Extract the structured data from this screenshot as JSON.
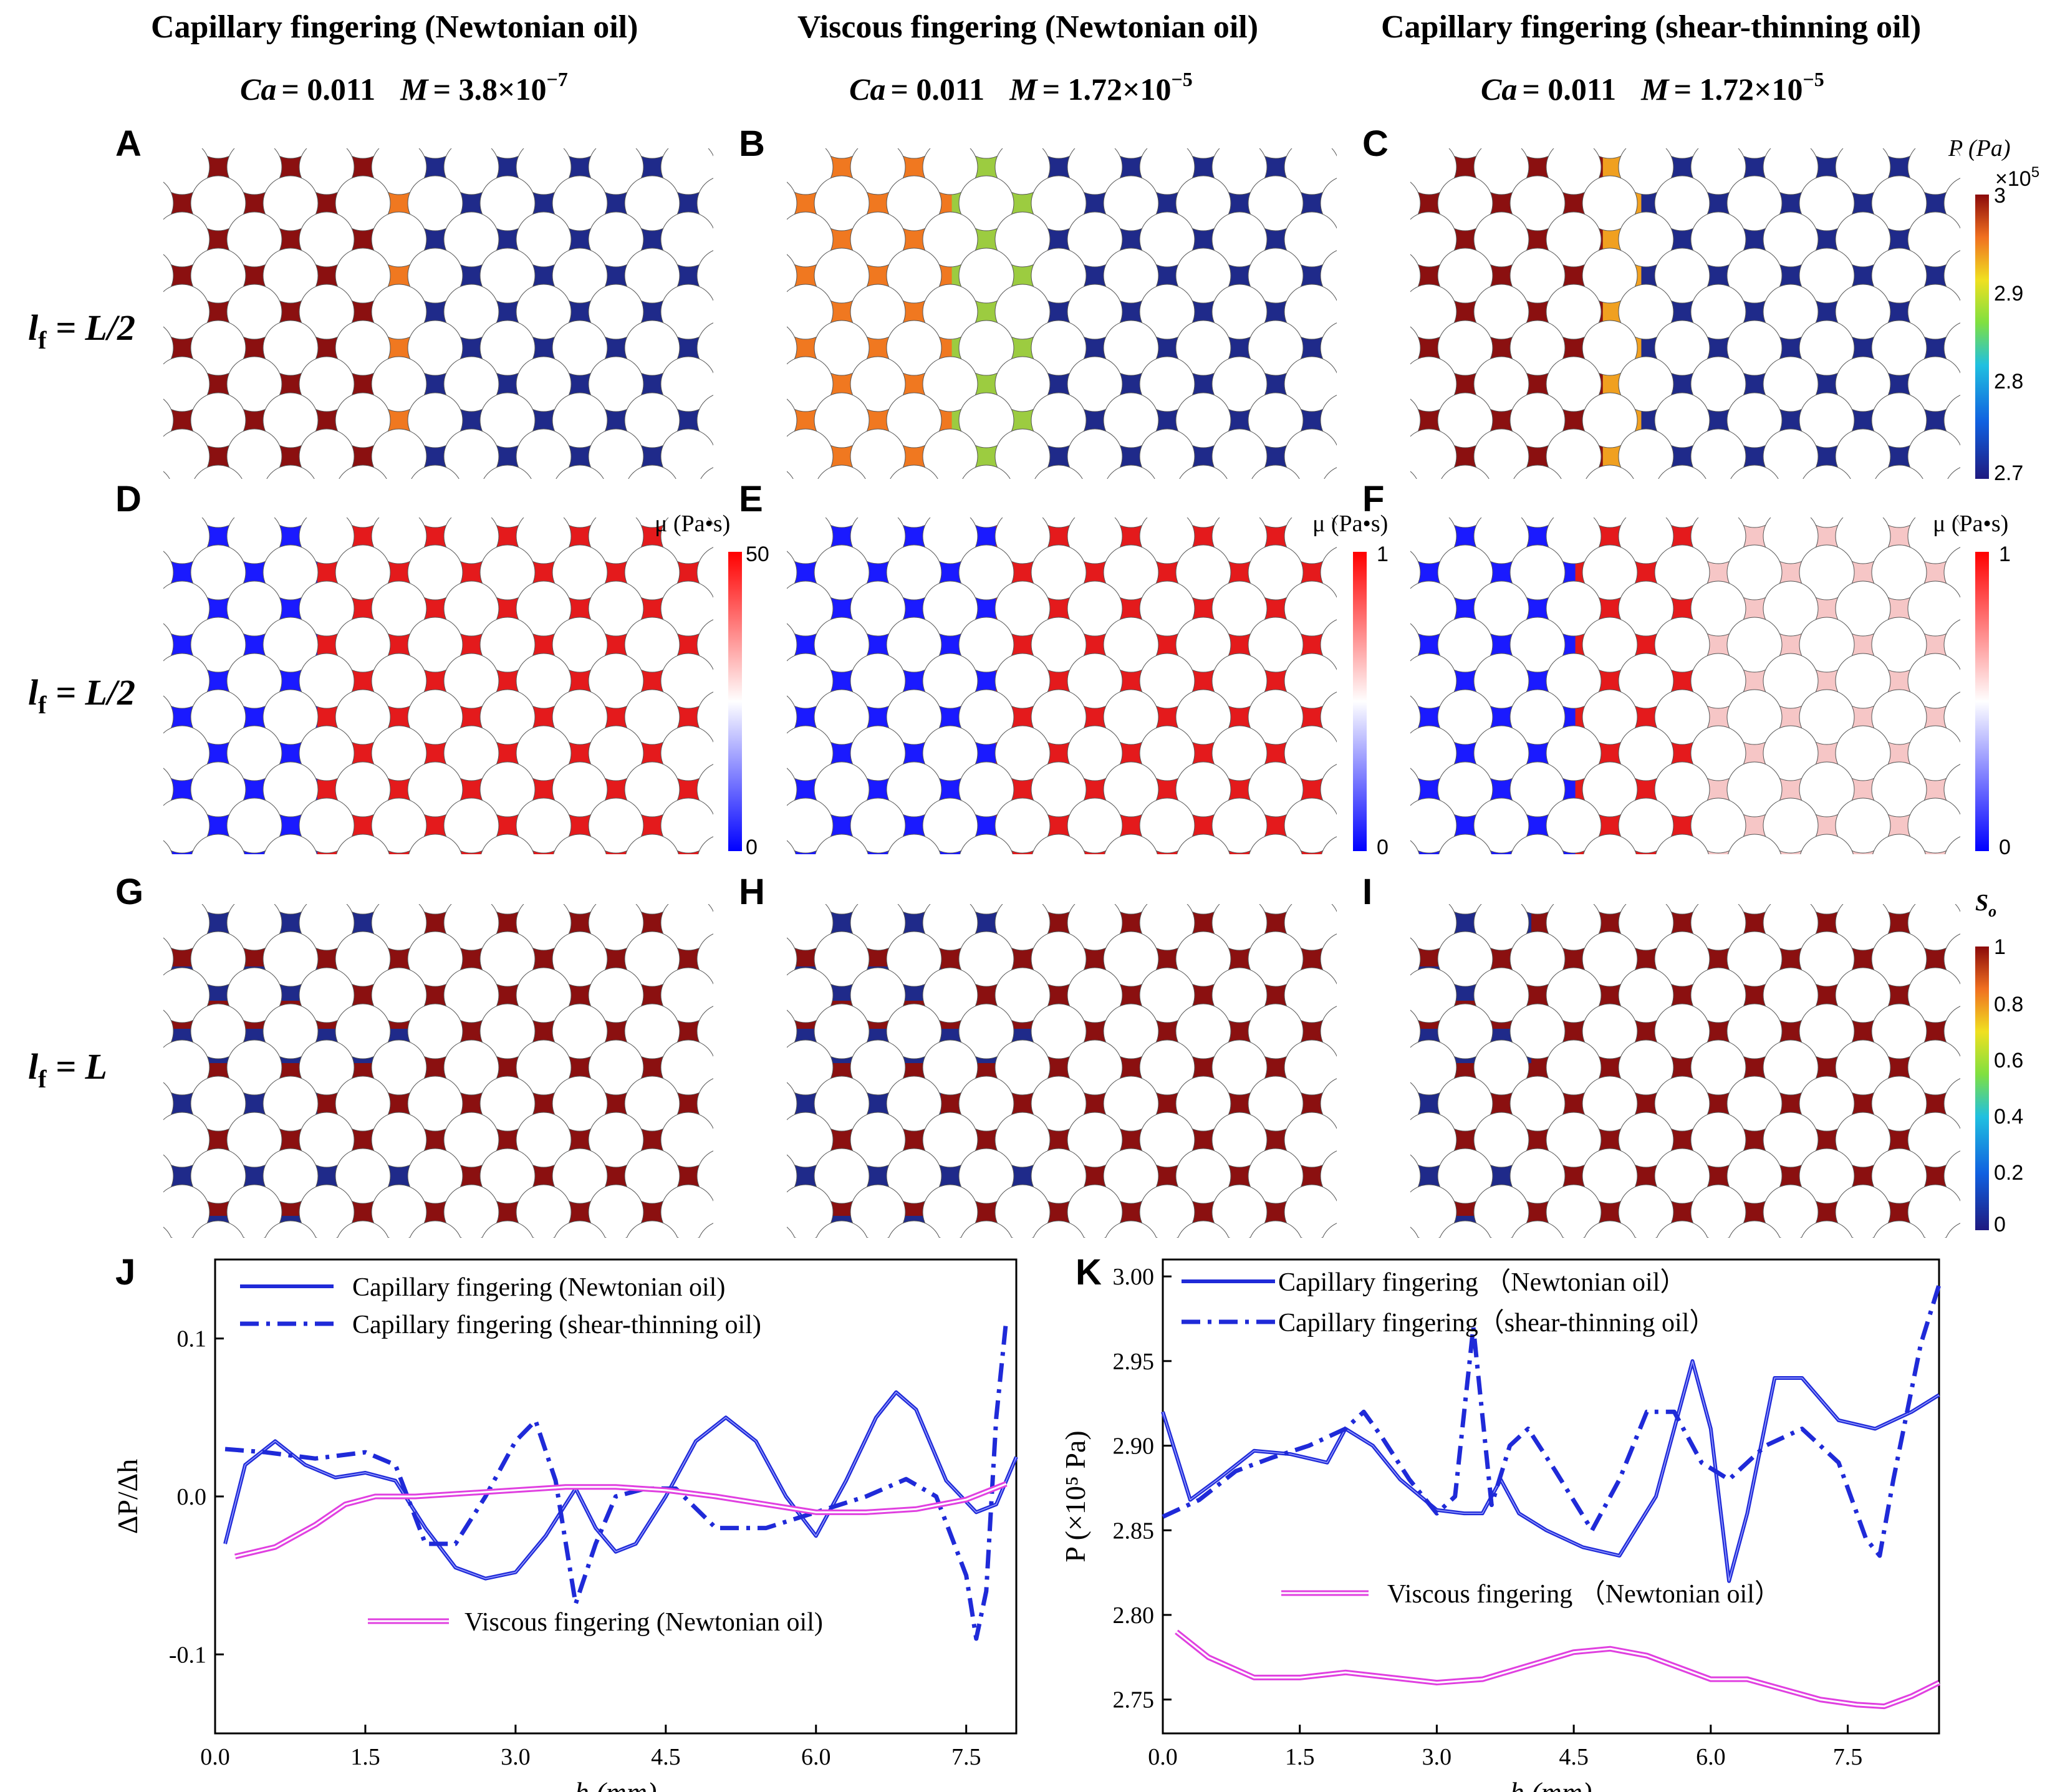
{
  "columns": [
    {
      "title": "Capillary fingering (Newtonian oil)",
      "ca_label": "Ca",
      "ca_value": "= 0.011",
      "m_label": "M",
      "m_value": "= 3.8×10",
      "m_exp": "−7"
    },
    {
      "title": "Viscous fingering (Newtonian oil)",
      "ca_label": "Ca",
      "ca_value": "= 0.011",
      "m_label": "M",
      "m_value": "= 1.72×10",
      "m_exp": "−5"
    },
    {
      "title": "Capillary fingering (shear-thinning oil)",
      "ca_label": "Ca",
      "ca_value": "= 0.011",
      "m_label": "M",
      "m_value": "= 1.72×10",
      "m_exp": "−5"
    }
  ],
  "rows": [
    {
      "lf_main": "l",
      "lf_sub": "f",
      "lf_rhs": " = L/2"
    },
    {
      "lf_main": "l",
      "lf_sub": "f",
      "lf_rhs": " = L/2"
    },
    {
      "lf_main": "l",
      "lf_sub": "f",
      "lf_rhs": " = L"
    }
  ],
  "panel_labels": [
    "A",
    "B",
    "C",
    "D",
    "E",
    "F",
    "G",
    "H",
    "I",
    "J",
    "K"
  ],
  "colorbars": {
    "pressure": {
      "title": "P (Pa)",
      "multiplier": "×10",
      "multiplier_exp": "5",
      "ticks": [
        "3",
        "2.9",
        "2.8",
        "2.7"
      ]
    },
    "visc_d": {
      "title": "μ (Pa•s)",
      "ticks": [
        "50",
        "0"
      ]
    },
    "visc_e": {
      "title": "μ (Pa•s)",
      "ticks": [
        "1",
        "0"
      ]
    },
    "visc_f": {
      "title": "μ (Pa•s)",
      "ticks": [
        "1",
        "0"
      ]
    },
    "saturation": {
      "title": "S",
      "title_sub": "o",
      "ticks": [
        "1",
        "0.8",
        "0.6",
        "0.4",
        "0.2",
        "0"
      ]
    }
  },
  "colors": {
    "deep_red": "#8b1010",
    "red": "#e41a1c",
    "orange": "#f07820",
    "blue": "#1a1aff",
    "navy": "#1f2a8a",
    "line_blue": "#1f2ad8",
    "magenta": "#e040e0"
  },
  "chart_data": [
    {
      "id": "J",
      "type": "line",
      "xlabel": "h (mm)",
      "ylabel": "ΔP/Δh",
      "xlim": [
        0,
        8
      ],
      "ylim": [
        -0.15,
        0.15
      ],
      "xticks": [
        "0.0",
        "1.5",
        "3.0",
        "4.5",
        "6.0",
        "7.5"
      ],
      "yticks": [
        "0.1",
        "0.0",
        "-0.1"
      ],
      "series": [
        {
          "name": "Capillary fingering (Newtonian oil)",
          "style": "solid",
          "x": [
            0.1,
            0.3,
            0.6,
            0.9,
            1.2,
            1.5,
            1.8,
            2.1,
            2.4,
            2.7,
            3.0,
            3.3,
            3.6,
            3.8,
            4.0,
            4.2,
            4.5,
            4.8,
            5.1,
            5.4,
            5.7,
            6.0,
            6.3,
            6.6,
            6.8,
            7.0,
            7.3,
            7.6,
            7.8,
            8.0
          ],
          "y": [
            -0.03,
            0.02,
            0.035,
            0.02,
            0.012,
            0.015,
            0.01,
            -0.02,
            -0.045,
            -0.052,
            -0.048,
            -0.025,
            0.005,
            -0.02,
            -0.035,
            -0.03,
            0.0,
            0.035,
            0.05,
            0.035,
            0.0,
            -0.025,
            0.01,
            0.05,
            0.066,
            0.055,
            0.01,
            -0.01,
            -0.005,
            0.025
          ]
        },
        {
          "name": "Capillary fingering (shear-thinning oil)",
          "style": "dashdot",
          "x": [
            0.1,
            0.5,
            1.0,
            1.5,
            1.8,
            2.1,
            2.4,
            2.7,
            3.0,
            3.2,
            3.4,
            3.6,
            3.8,
            4.0,
            4.3,
            4.6,
            5.0,
            5.5,
            6.0,
            6.5,
            6.9,
            7.2,
            7.5,
            7.6,
            7.7,
            7.8,
            7.9
          ],
          "y": [
            0.03,
            0.028,
            0.024,
            0.028,
            0.02,
            -0.03,
            -0.03,
            0.0,
            0.035,
            0.048,
            0.01,
            -0.068,
            -0.03,
            0.0,
            0.005,
            0.005,
            -0.02,
            -0.02,
            -0.01,
            0.0,
            0.011,
            0.0,
            -0.05,
            -0.09,
            -0.06,
            0.05,
            0.112
          ]
        },
        {
          "name": "Viscous fingering (Newtonian oil)",
          "style": "double",
          "x": [
            0.2,
            0.6,
            1.0,
            1.3,
            1.6,
            2.0,
            2.5,
            3.0,
            3.5,
            4.0,
            4.5,
            5.0,
            5.5,
            6.0,
            6.5,
            7.0,
            7.5,
            7.9
          ],
          "y": [
            -0.038,
            -0.032,
            -0.018,
            -0.005,
            0.0,
            0.0,
            0.002,
            0.004,
            0.006,
            0.006,
            0.004,
            0.0,
            -0.005,
            -0.01,
            -0.01,
            -0.008,
            -0.002,
            0.008
          ]
        }
      ]
    },
    {
      "id": "K",
      "type": "line",
      "xlabel": "h (mm)",
      "ylabel": "P (×10⁵ Pa)",
      "xlim": [
        0,
        8.5
      ],
      "ylim": [
        2.73,
        3.01
      ],
      "xticks": [
        "0.0",
        "1.5",
        "3.0",
        "4.5",
        "6.0",
        "7.5"
      ],
      "yticks": [
        "3.00",
        "2.95",
        "2.90",
        "2.85",
        "2.80",
        "2.75"
      ],
      "series": [
        {
          "name": "Capillary fingering （Newtonian oil）",
          "style": "solid",
          "x": [
            0.0,
            0.3,
            0.6,
            1.0,
            1.4,
            1.8,
            2.0,
            2.3,
            2.6,
            3.0,
            3.3,
            3.5,
            3.7,
            3.9,
            4.2,
            4.6,
            5.0,
            5.4,
            5.8,
            6.0,
            6.2,
            6.4,
            6.7,
            7.0,
            7.4,
            7.8,
            8.2,
            8.5
          ],
          "y": [
            2.92,
            2.868,
            2.88,
            2.897,
            2.895,
            2.89,
            2.91,
            2.9,
            2.88,
            2.862,
            2.86,
            2.86,
            2.88,
            2.86,
            2.85,
            2.84,
            2.835,
            2.87,
            2.95,
            2.91,
            2.82,
            2.86,
            2.94,
            2.94,
            2.915,
            2.91,
            2.92,
            2.93
          ]
        },
        {
          "name": "Capillary fingering（shear-thinning oil）",
          "style": "dashdot",
          "x": [
            0.0,
            0.4,
            0.8,
            1.2,
            1.6,
            2.0,
            2.2,
            2.4,
            2.7,
            3.0,
            3.2,
            3.4,
            3.6,
            3.8,
            4.0,
            4.3,
            4.7,
            5.0,
            5.3,
            5.6,
            5.9,
            6.2,
            6.6,
            7.0,
            7.4,
            7.7,
            7.85,
            8.0,
            8.3,
            8.5
          ],
          "y": [
            2.858,
            2.868,
            2.885,
            2.893,
            2.9,
            2.91,
            2.92,
            2.905,
            2.88,
            2.86,
            2.87,
            2.97,
            2.865,
            2.9,
            2.91,
            2.885,
            2.85,
            2.88,
            2.92,
            2.92,
            2.89,
            2.88,
            2.9,
            2.91,
            2.89,
            2.845,
            2.835,
            2.88,
            2.96,
            2.995
          ]
        },
        {
          "name": "Viscous fingering （Newtonian oil）",
          "style": "double",
          "x": [
            0.15,
            0.5,
            1.0,
            1.5,
            2.0,
            2.5,
            3.0,
            3.5,
            4.0,
            4.5,
            4.9,
            5.3,
            5.7,
            6.0,
            6.4,
            6.8,
            7.2,
            7.6,
            7.9,
            8.2,
            8.5
          ],
          "y": [
            2.79,
            2.775,
            2.763,
            2.763,
            2.766,
            2.763,
            2.76,
            2.762,
            2.77,
            2.778,
            2.78,
            2.776,
            2.768,
            2.762,
            2.762,
            2.756,
            2.75,
            2.747,
            2.746,
            2.752,
            2.76
          ]
        }
      ]
    }
  ]
}
